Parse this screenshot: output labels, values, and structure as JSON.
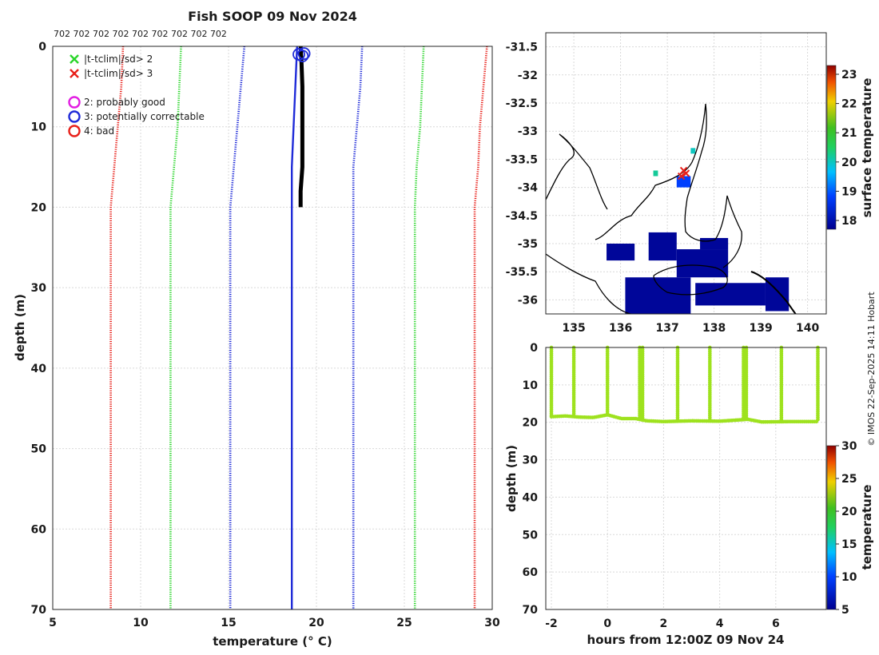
{
  "colors": {
    "red": "#e8201a",
    "green": "#2bd52b",
    "blue": "#1f2bd8",
    "black": "#000000",
    "timeseries": "#9ee21e",
    "sea": "#0f1a7a",
    "magenta": "#e21ee2"
  },
  "chart_data": [
    {
      "type": "line",
      "title": "Fish SOOP 09 Nov 2024",
      "subtitle": "702 702 702 702 702 702 702 702 702",
      "xlabel": "temperature (° C)",
      "ylabel": "depth (m)",
      "xlim": [
        5,
        30
      ],
      "ylim": [
        70,
        0
      ],
      "xticks": [
        "5",
        "10",
        "15",
        "20",
        "25",
        "30"
      ],
      "yticks": [
        "0",
        "10",
        "20",
        "30",
        "40",
        "50",
        "60",
        "70"
      ],
      "grid": true,
      "legend": [
        {
          "marker": "x",
          "color": "green",
          "label": "|t-tclim|/sd> 2"
        },
        {
          "marker": "x",
          "color": "red",
          "label": "|t-tclim|/sd> 3"
        },
        {
          "marker": "o",
          "color": "magenta",
          "label": "2: probably good"
        },
        {
          "marker": "o",
          "color": "blue",
          "label": "3: potentially correctable"
        },
        {
          "marker": "o",
          "color": "red",
          "label": "4: bad"
        }
      ],
      "series": [
        {
          "style": "dotted",
          "color": "red",
          "x": [
            9.0,
            8.9,
            8.7,
            8.5,
            8.3,
            8.3,
            8.3,
            8.3,
            8.3
          ],
          "y": [
            0,
            5,
            10,
            15,
            20,
            30,
            45,
            60,
            70
          ]
        },
        {
          "style": "dotted",
          "color": "green",
          "x": [
            12.3,
            12.2,
            12.1,
            11.9,
            11.7,
            11.7,
            11.7,
            11.7,
            11.7
          ],
          "y": [
            0,
            5,
            10,
            15,
            20,
            30,
            45,
            60,
            70
          ]
        },
        {
          "style": "dotted",
          "color": "blue",
          "x": [
            15.9,
            15.7,
            15.5,
            15.3,
            15.1,
            15.1,
            15.1,
            15.1,
            15.1
          ],
          "y": [
            0,
            5,
            10,
            15,
            20,
            30,
            45,
            60,
            70
          ]
        },
        {
          "style": "solid",
          "color": "blue",
          "x": [
            18.9,
            18.8,
            18.7,
            18.6,
            18.6,
            18.6,
            18.6,
            18.6
          ],
          "y": [
            0,
            5,
            10,
            15,
            20,
            40,
            60,
            70
          ]
        },
        {
          "style": "dotted",
          "color": "blue",
          "x": [
            22.6,
            22.5,
            22.3,
            22.1,
            22.1,
            22.1,
            22.1,
            22.1
          ],
          "y": [
            0,
            5,
            10,
            15,
            20,
            40,
            60,
            70
          ]
        },
        {
          "style": "dotted",
          "color": "green",
          "x": [
            26.1,
            26.0,
            25.9,
            25.7,
            25.6,
            25.6,
            25.6,
            25.6
          ],
          "y": [
            0,
            5,
            10,
            15,
            20,
            40,
            60,
            70
          ]
        },
        {
          "style": "dotted",
          "color": "red",
          "x": [
            29.7,
            29.5,
            29.3,
            29.2,
            29.0,
            29.0,
            29.0,
            29.0
          ],
          "y": [
            0,
            5,
            10,
            15,
            20,
            40,
            60,
            70
          ]
        },
        {
          "style": "thick",
          "color": "black",
          "x": [
            19.1,
            19.15,
            19.2,
            19.2,
            19.2,
            19.1,
            19.1
          ],
          "y": [
            0,
            2,
            5,
            10,
            15,
            18,
            20
          ]
        }
      ],
      "flags": [
        {
          "marker": "o",
          "color": "blue",
          "x": 19.2,
          "y": 1.2
        },
        {
          "marker": "o",
          "color": "blue",
          "x": 19.0,
          "y": 1.0
        },
        {
          "marker": "o",
          "color": "blue",
          "x": 19.3,
          "y": 0.9
        }
      ]
    },
    {
      "type": "heatmap",
      "xlim": [
        134.4,
        140.4
      ],
      "ylim": [
        -36.25,
        -31.25
      ],
      "xticks": [
        "135",
        "136",
        "137",
        "138",
        "139",
        "140"
      ],
      "yticks": [
        "-31.5",
        "-32",
        "-32.5",
        "-33",
        "-33.5",
        "-34",
        "-34.5",
        "-35",
        "-35.5",
        "-36"
      ],
      "colorbar": {
        "label": "surface temperature",
        "range": [
          17.7,
          23.3
        ],
        "ticks": [
          "18",
          "19",
          "20",
          "21",
          "22",
          "23"
        ]
      },
      "patches": [
        {
          "lon": [
            136.1,
            137.5
          ],
          "lat": [
            -36.25,
            -35.6
          ],
          "value": 17.8
        },
        {
          "lon": [
            137.6,
            139.1
          ],
          "lat": [
            -36.1,
            -35.7
          ],
          "value": 17.8
        },
        {
          "lon": [
            136.6,
            137.2
          ],
          "lat": [
            -35.3,
            -34.8
          ],
          "value": 17.8
        },
        {
          "lon": [
            137.2,
            138.3
          ],
          "lat": [
            -35.6,
            -35.1
          ],
          "value": 17.8
        },
        {
          "lon": [
            137.7,
            138.3
          ],
          "lat": [
            -35.1,
            -34.9
          ],
          "value": 17.8
        },
        {
          "lon": [
            135.7,
            136.3
          ],
          "lat": [
            -35.3,
            -35.0
          ],
          "value": 17.8
        },
        {
          "lon": [
            139.1,
            139.6
          ],
          "lat": [
            -36.2,
            -35.6
          ],
          "value": 17.8
        },
        {
          "lon": [
            137.5,
            137.6
          ],
          "lat": [
            -33.4,
            -33.3
          ],
          "value": 20.0
        },
        {
          "lon": [
            137.2,
            137.5
          ],
          "lat": [
            -34.0,
            -33.8
          ],
          "value": 18.8
        },
        {
          "lon": [
            136.7,
            136.8
          ],
          "lat": [
            -33.8,
            -33.7
          ],
          "value": 20.2
        }
      ],
      "track": [
        {
          "lon": 137.35,
          "lat": -33.7
        },
        {
          "lon": 137.4,
          "lat": -33.75
        },
        {
          "lon": 137.3,
          "lat": -33.8
        }
      ]
    },
    {
      "type": "scatter",
      "xlabel": "hours from 12:00Z 09 Nov 24",
      "ylabel": "depth (m)",
      "xlim": [
        -2.2,
        7.8
      ],
      "ylim": [
        70,
        0
      ],
      "xticks": [
        "-2",
        "0",
        "2",
        "4",
        "6"
      ],
      "yticks": [
        "0",
        "10",
        "20",
        "30",
        "40",
        "50",
        "60",
        "70"
      ],
      "colorbar": {
        "label": "temperature",
        "range": [
          5,
          30
        ],
        "ticks": [
          "5",
          "10",
          "15",
          "20",
          "25",
          "30"
        ]
      },
      "casts": [
        -2.0,
        -1.2,
        0.0,
        1.15,
        1.25,
        2.5,
        3.65,
        4.85,
        4.95,
        6.2,
        7.5
      ],
      "bottom_depth": [
        {
          "x": -2.0,
          "y": 18.5
        },
        {
          "x": -1.5,
          "y": 18.3
        },
        {
          "x": -1.0,
          "y": 18.6
        },
        {
          "x": -0.5,
          "y": 18.7
        },
        {
          "x": 0.0,
          "y": 18.0
        },
        {
          "x": 0.5,
          "y": 19.0
        },
        {
          "x": 1.0,
          "y": 19.0
        },
        {
          "x": 1.4,
          "y": 19.6
        },
        {
          "x": 2.0,
          "y": 19.8
        },
        {
          "x": 3.0,
          "y": 19.6
        },
        {
          "x": 4.0,
          "y": 19.7
        },
        {
          "x": 5.0,
          "y": 19.2
        },
        {
          "x": 5.5,
          "y": 19.9
        },
        {
          "x": 6.5,
          "y": 19.8
        },
        {
          "x": 7.5,
          "y": 19.8
        }
      ]
    }
  ],
  "footer_credit": "© IMOS 22-Sep-2025 14:11 Hobart"
}
